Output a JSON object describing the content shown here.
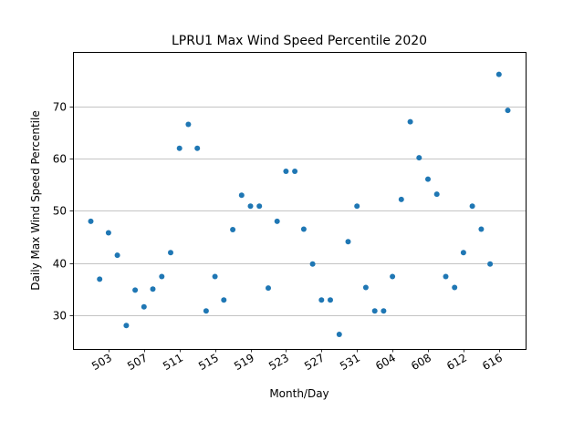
{
  "chart_data": {
    "type": "scatter",
    "title": "LPRU1 Max Wind Speed Percentile 2020",
    "xlabel": "Month/Day",
    "ylabel": "Daily Max Wind Speed Percentile",
    "x_tick_labels": [
      "503",
      "507",
      "511",
      "515",
      "519",
      "523",
      "527",
      "531",
      "604",
      "608",
      "612",
      "616"
    ],
    "x_tick_dates": [
      "2020-05-03",
      "2020-05-07",
      "2020-05-11",
      "2020-05-15",
      "2020-05-19",
      "2020-05-23",
      "2020-05-27",
      "2020-05-31",
      "2020-06-04",
      "2020-06-08",
      "2020-06-12",
      "2020-06-16"
    ],
    "xlim": [
      "2020-04-29",
      "2020-06-19"
    ],
    "y_ticks": [
      30,
      40,
      50,
      60,
      70
    ],
    "ylim": [
      23.5,
      80.5
    ],
    "grid": "horizontal",
    "point_color": "#1f77b4",
    "series": [
      {
        "x": [
          "2020-05-01",
          "2020-05-02",
          "2020-05-03",
          "2020-05-04",
          "2020-05-05",
          "2020-05-06",
          "2020-05-07",
          "2020-05-08",
          "2020-05-09",
          "2020-05-10",
          "2020-05-11",
          "2020-05-12",
          "2020-05-13",
          "2020-05-14",
          "2020-05-15",
          "2020-05-16",
          "2020-05-17",
          "2020-05-18",
          "2020-05-19",
          "2020-05-20",
          "2020-05-21",
          "2020-05-22",
          "2020-05-23",
          "2020-05-24",
          "2020-05-25",
          "2020-05-26",
          "2020-05-27",
          "2020-05-28",
          "2020-05-29",
          "2020-05-30",
          "2020-05-31",
          "2020-06-01",
          "2020-06-02",
          "2020-06-03",
          "2020-06-04",
          "2020-06-05",
          "2020-06-06",
          "2020-06-07",
          "2020-06-08",
          "2020-06-09",
          "2020-06-10",
          "2020-06-11",
          "2020-06-12",
          "2020-06-13",
          "2020-06-14",
          "2020-06-15",
          "2020-06-16",
          "2020-06-17"
        ],
        "y": [
          48.0,
          36.9,
          45.8,
          41.5,
          28.0,
          34.8,
          31.6,
          35.0,
          37.4,
          42.0,
          62.0,
          66.6,
          62.0,
          30.8,
          37.4,
          32.9,
          46.4,
          53.0,
          50.9,
          50.9,
          35.2,
          48.0,
          57.6,
          57.6,
          46.5,
          39.8,
          32.9,
          32.9,
          26.3,
          44.1,
          50.9,
          35.3,
          30.8,
          30.8,
          37.4,
          52.2,
          67.1,
          60.2,
          56.1,
          53.2,
          37.4,
          35.3,
          42.0,
          50.9,
          46.5,
          39.8,
          76.2,
          69.3
        ]
      }
    ]
  }
}
